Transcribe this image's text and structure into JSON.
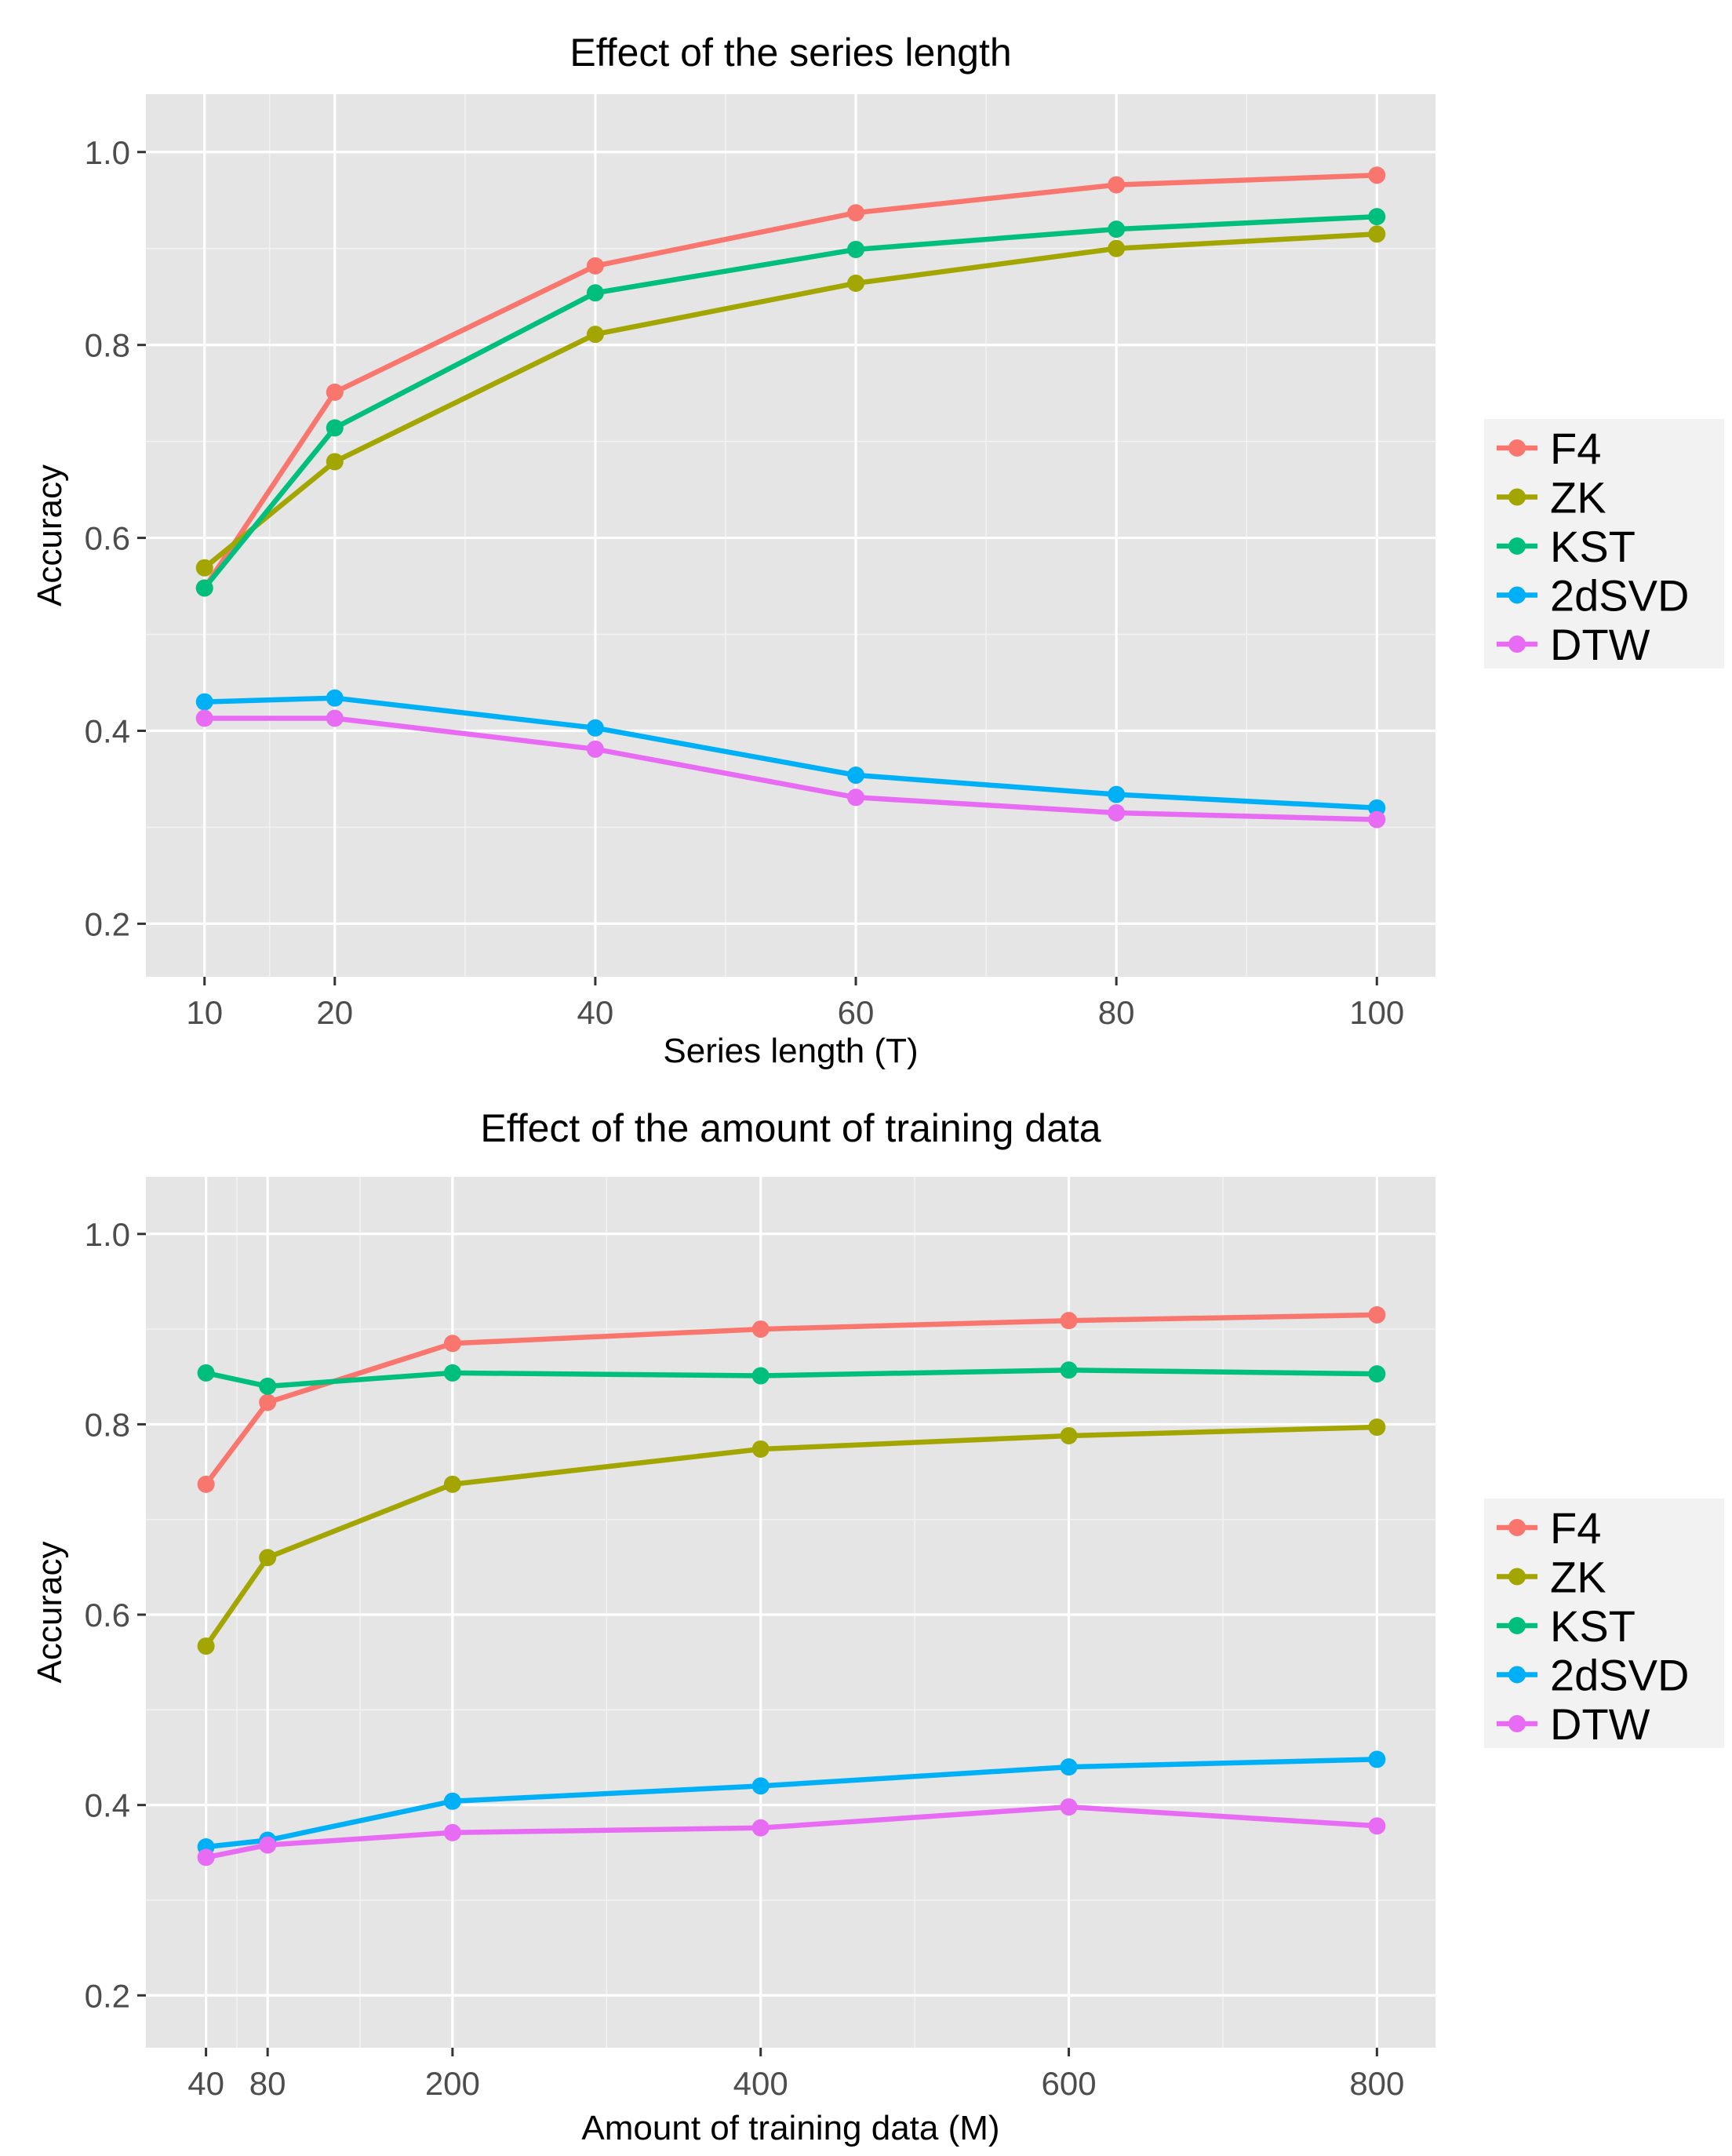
{
  "chart_data": [
    {
      "type": "line",
      "title": "Effect of the series length",
      "xlabel": "Series length (T)",
      "ylabel": "Accuracy",
      "x": [
        10,
        20,
        40,
        60,
        80,
        100
      ],
      "xticks": [
        10,
        20,
        40,
        60,
        80,
        100
      ],
      "xlim": [
        5.5,
        104.5
      ],
      "yticks": [
        0.2,
        0.4,
        0.6,
        0.8,
        1.0
      ],
      "ylim": [
        0.145,
        1.06
      ],
      "grid": true,
      "legend_position": "right",
      "series": [
        {
          "name": "F4",
          "color": "#F8766D",
          "values": [
            0.548,
            0.751,
            0.882,
            0.937,
            0.966,
            0.976
          ]
        },
        {
          "name": "ZK",
          "color": "#A3A500",
          "values": [
            0.569,
            0.679,
            0.811,
            0.864,
            0.9,
            0.915
          ]
        },
        {
          "name": "KST",
          "color": "#00BF7D",
          "values": [
            0.548,
            0.714,
            0.854,
            0.899,
            0.92,
            0.933
          ]
        },
        {
          "name": "2dSVD",
          "color": "#00B0F6",
          "values": [
            0.43,
            0.434,
            0.403,
            0.354,
            0.334,
            0.32
          ]
        },
        {
          "name": "DTW",
          "color": "#E76BF3",
          "values": [
            0.413,
            0.413,
            0.381,
            0.331,
            0.315,
            0.308
          ]
        }
      ]
    },
    {
      "type": "line",
      "title": "Effect of the amount of training data",
      "xlabel": "Amount of training data (M)",
      "ylabel": "Accuracy",
      "x": [
        40,
        80,
        200,
        400,
        600,
        800
      ],
      "xticks": [
        40,
        80,
        200,
        400,
        600,
        800
      ],
      "xlim": [
        1,
        838
      ],
      "yticks": [
        0.2,
        0.4,
        0.6,
        0.8,
        1.0
      ],
      "ylim": [
        0.145,
        1.06
      ],
      "grid": true,
      "legend_position": "right",
      "series": [
        {
          "name": "F4",
          "color": "#F8766D",
          "values": [
            0.737,
            0.823,
            0.885,
            0.9,
            0.909,
            0.915
          ]
        },
        {
          "name": "ZK",
          "color": "#A3A500",
          "values": [
            0.567,
            0.66,
            0.737,
            0.774,
            0.788,
            0.797
          ]
        },
        {
          "name": "KST",
          "color": "#00BF7D",
          "values": [
            0.854,
            0.84,
            0.854,
            0.851,
            0.857,
            0.853
          ]
        },
        {
          "name": "2dSVD",
          "color": "#00B0F6",
          "values": [
            0.356,
            0.363,
            0.404,
            0.42,
            0.44,
            0.448
          ]
        },
        {
          "name": "DTW",
          "color": "#E76BF3",
          "values": [
            0.345,
            0.358,
            0.371,
            0.376,
            0.398,
            0.378
          ]
        }
      ]
    }
  ]
}
